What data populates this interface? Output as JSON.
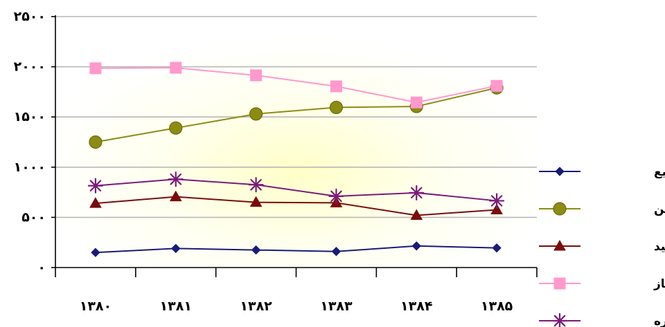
{
  "chart_data": {
    "type": "line",
    "title": "",
    "xlabel": "",
    "ylabel": "",
    "categories": [
      "۱۳۸۰",
      "۱۳۸۱",
      "۱۳۸۲",
      "۱۳۸۳",
      "۱۳۸۴",
      "۱۳۸۵"
    ],
    "ylim": [
      0,
      2500
    ],
    "yticks": [
      0,
      500,
      1000,
      1500,
      2000,
      2500
    ],
    "ytick_labels": [
      "۰",
      "۵۰۰",
      "۱۰۰۰",
      "۱۵۰۰",
      "۲۰۰۰",
      "۲۵۰۰"
    ],
    "grid": true,
    "legend_position": "right",
    "series": [
      {
        "name": "گاز مایع",
        "color": "#1a1a7a",
        "marker": "diamond",
        "values": [
          150,
          190,
          175,
          160,
          215,
          195
        ]
      },
      {
        "name": "بنزین",
        "color": "#8c8c14",
        "marker": "circle",
        "values": [
          1250,
          1390,
          1530,
          1595,
          1605,
          1790
        ]
      },
      {
        "name": "نفت سفید",
        "color": "#7a0c0c",
        "marker": "triangle",
        "values": [
          640,
          705,
          650,
          645,
          520,
          575
        ]
      },
      {
        "name": "نفت گاز",
        "color": "#ff99cc",
        "marker": "square",
        "values": [
          1985,
          1990,
          1915,
          1805,
          1645,
          1810
        ]
      },
      {
        "name": "نفت کوره",
        "color": "#7a1a7a",
        "marker": "star",
        "values": [
          815,
          880,
          825,
          710,
          745,
          665
        ]
      }
    ]
  }
}
